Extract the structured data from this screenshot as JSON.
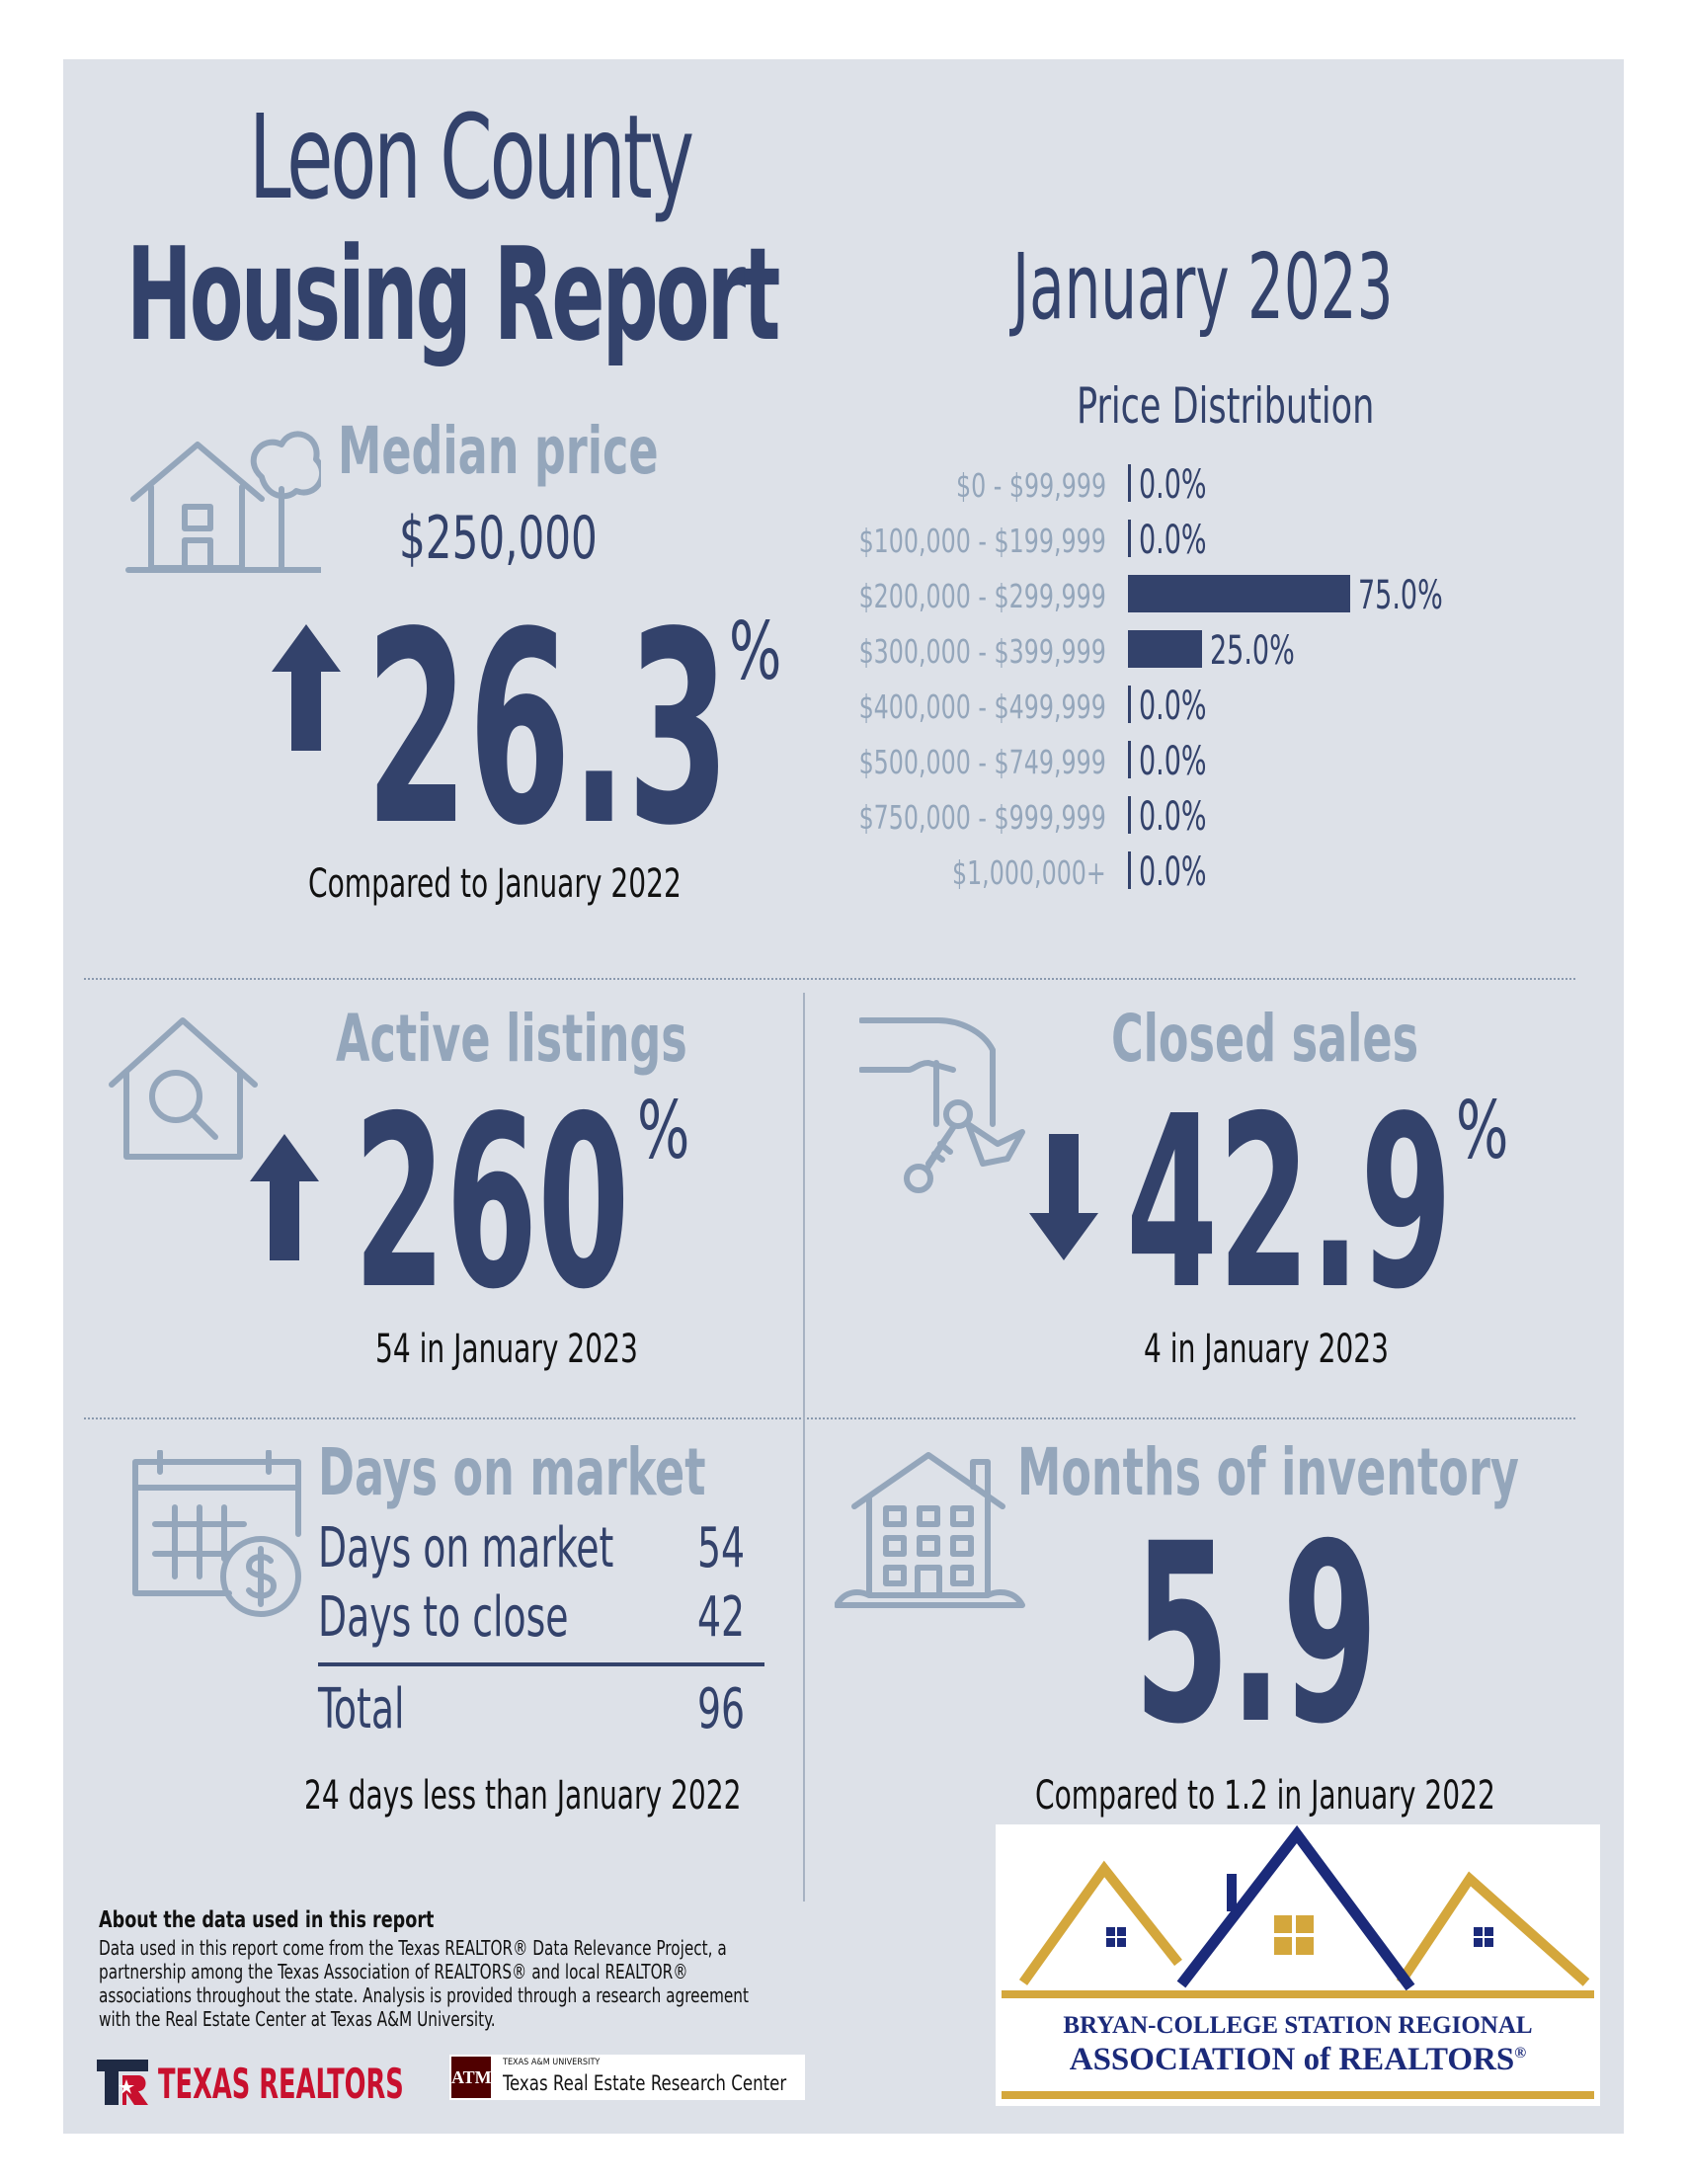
{
  "header": {
    "county": "Leon County",
    "report": "Housing Report",
    "month": "January 2023"
  },
  "median_price": {
    "title": "Median price",
    "value": "$250,000",
    "direction": "up",
    "change": "26.3",
    "unit": "%",
    "comparison": "Compared to January 2022"
  },
  "chart_data": {
    "type": "bar",
    "title": "Price Distribution",
    "orientation": "horizontal",
    "categories": [
      "$0 - $99,999",
      "$100,000 - $199,999",
      "$200,000 - $299,999",
      "$300,000 - $399,999",
      "$400,000 - $499,999",
      "$500,000 - $749,999",
      "$750,000 - $999,999",
      "$1,000,000+"
    ],
    "values": [
      0.0,
      0.0,
      75.0,
      25.0,
      0.0,
      0.0,
      0.0,
      0.0
    ],
    "labels": [
      "0.0%",
      "0.0%",
      "75.0%",
      "25.0%",
      "0.0%",
      "0.0%",
      "0.0%",
      "0.0%"
    ],
    "xlim": [
      0,
      100
    ],
    "color": "#33426b"
  },
  "active_listings": {
    "title": "Active listings",
    "direction": "up",
    "change": "260",
    "unit": "%",
    "detail": "54 in January 2023"
  },
  "closed_sales": {
    "title": "Closed sales",
    "direction": "down",
    "change": "42.9",
    "unit": "%",
    "detail": "4 in January 2023"
  },
  "days_on_market": {
    "title": "Days on market",
    "rows": [
      {
        "label": "Days on market",
        "value": "54"
      },
      {
        "label": "Days to close",
        "value": "42"
      }
    ],
    "total_label": "Total",
    "total_value": "96",
    "comparison": "24 days less than January 2022"
  },
  "months_inventory": {
    "title": "Months of inventory",
    "value": "5.9",
    "comparison": "Compared to 1.2 in January 2022"
  },
  "footer": {
    "about_title": "About the data used in this report",
    "about_lines": [
      "Data used in this report come from the Texas REALTOR® Data Relevance Project, a",
      "partnership among the Texas Association of REALTORS® and local REALTOR®",
      "associations throughout the state. Analysis is provided through a research agreement",
      "with the Real Estate Center at Texas A&M University."
    ],
    "texas_realtors": "TEXAS REALTORS",
    "tamu_small": "TEXAS A&M UNIVERSITY",
    "tamu_center": "Texas Real Estate Research Center",
    "assoc_line1": "BRYAN-COLLEGE STATION REGIONAL",
    "assoc_line2": "ASSOCIATION of REALTORS",
    "assoc_reg": "®"
  },
  "colors": {
    "navy": "#33426b",
    "muted": "#94a6bb",
    "background": "#dde1e8",
    "gold": "#d4a73c",
    "logo_navy": "#1b2a7a"
  },
  "icons": [
    "house-tree-icon",
    "house-search-icon",
    "hand-keys-icon",
    "calendar-dollar-icon",
    "apartment-building-icon",
    "arrow-up-icon",
    "arrow-down-icon"
  ]
}
